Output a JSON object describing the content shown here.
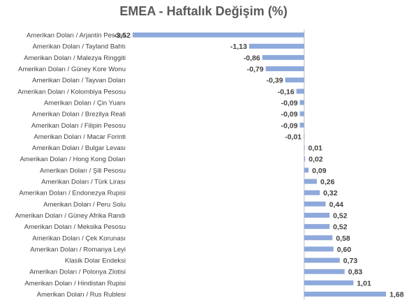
{
  "chart_data": {
    "type": "bar",
    "orientation": "horizontal",
    "title": "EMEA - Haftalık Değişim (%)",
    "xlabel": "",
    "ylabel": "",
    "grid": false,
    "xlim": [
      -3.52,
      1.68
    ],
    "bar_color": "#8EA9DB",
    "categories": [
      "Amerikan Doları / Arjantin Pesosu",
      "Amerikan Doları / Tayland Bahtı",
      "Amerikan Doları / Malezya Ringgiti",
      "Amerikan Doları / Güney Kore Wonu",
      "Amerikan Doları / Tayvan Doları",
      "Amerikan Doları / Kolombiya Pesosu",
      "Amerikan Doları / Çin Yuanı",
      "Amerikan Doları / Brezilya Reali",
      "Amerikan Doları / Filipin Pesosu",
      "Amerikan Doları / Macar Forinti",
      "Amerikan Doları / Bulgar Levası",
      "Amerikan Doları / Hong Kong Doları",
      "Amerikan Doları / Şili Pesosu",
      "Amerikan Doları / Türk Lirası",
      "Amerikan Doları / Endonezya Rupisi",
      "Amerikan Doları / Peru Solu",
      "Amerikan Doları / Güney Afrika Randı",
      "Amerikan Doları / Meksika Pesosu",
      "Amerikan Doları / Çek Korunası",
      "Amerikan Doları / Romanya Leyi",
      "Klasik Dolar Endeksi",
      "Amerikan Doları / Polonya Zlotisi",
      "Amerikan Doları / Hindistan Rupisi",
      "Amerikan Doları / Rus Rublesi"
    ],
    "values": [
      -3.52,
      -1.13,
      -0.86,
      -0.79,
      -0.39,
      -0.16,
      -0.09,
      -0.09,
      -0.09,
      -0.01,
      0.01,
      0.02,
      0.09,
      0.26,
      0.32,
      0.44,
      0.52,
      0.52,
      0.58,
      0.6,
      0.73,
      0.83,
      1.01,
      1.68
    ],
    "value_labels": [
      "-3,52",
      "-1,13",
      "-0,86",
      "-0,79",
      "-0,39",
      "-0,16",
      "-0,09",
      "-0,09",
      "-0,09",
      "-0,01",
      "0,01",
      "0,02",
      "0,09",
      "0,26",
      "0,32",
      "0,44",
      "0,52",
      "0,52",
      "0,58",
      "0,60",
      "0,73",
      "0,83",
      "1,01",
      "1,68"
    ]
  }
}
